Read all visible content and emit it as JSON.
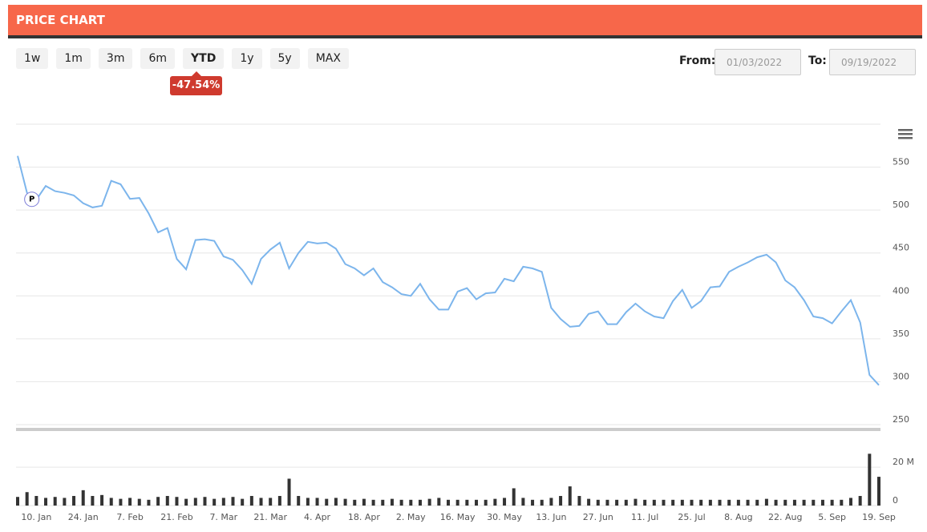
{
  "header": {
    "title": "PRICE CHART"
  },
  "controls": {
    "ranges": [
      "1w",
      "1m",
      "3m",
      "6m",
      "YTD",
      "1y",
      "5y",
      "MAX"
    ],
    "selected": "YTD",
    "change": "-47.54%",
    "from_label": "From:",
    "from": "01/03/2022",
    "to_label": "To:",
    "to": "09/19/2022"
  },
  "chart_data": {
    "type": "line",
    "categories": [
      null,
      null,
      "10. Jan",
      null,
      null,
      null,
      null,
      "24. Jan",
      null,
      null,
      null,
      null,
      "7. Feb",
      null,
      null,
      null,
      null,
      "21. Feb",
      null,
      null,
      null,
      null,
      "7. Mar",
      null,
      null,
      null,
      null,
      "21. Mar",
      null,
      null,
      null,
      null,
      "4. Apr",
      null,
      null,
      null,
      null,
      "18. Apr",
      null,
      null,
      null,
      null,
      "2. May",
      null,
      null,
      null,
      null,
      "16. May",
      null,
      null,
      null,
      null,
      "30. May",
      null,
      null,
      null,
      null,
      "13. Jun",
      null,
      null,
      null,
      null,
      "27. Jun",
      null,
      null,
      null,
      null,
      "11. Jul",
      null,
      null,
      null,
      null,
      "25. Jul",
      null,
      null,
      null,
      null,
      "8. Aug",
      null,
      null,
      null,
      null,
      "22. Aug",
      null,
      null,
      null,
      null,
      "5. Sep",
      null,
      null,
      null,
      null,
      "19. Sep"
    ],
    "series": [
      {
        "color": "#7cb5ec",
        "values": [
          563,
          520,
          512,
          528,
          522,
          520,
          517,
          508,
          503,
          505,
          534,
          530,
          513,
          514,
          496,
          474,
          479,
          443,
          431,
          465,
          466,
          464,
          446,
          442,
          430,
          414,
          443,
          454,
          462,
          432,
          450,
          463,
          461,
          462,
          455,
          437,
          432,
          424,
          432,
          416,
          410,
          402,
          400,
          414,
          396,
          384,
          384,
          405,
          409,
          396,
          403,
          404,
          420,
          417,
          434,
          432,
          428,
          386,
          373,
          364,
          365,
          379,
          382,
          367,
          367,
          381,
          391,
          382,
          376,
          374,
          394,
          407,
          386,
          394,
          410,
          411,
          428,
          434,
          439,
          445,
          448,
          439,
          418,
          410,
          395,
          376,
          374,
          368,
          382,
          395,
          369,
          308,
          296
        ]
      },
      {
        "color": "#333333",
        "axis": "y2",
        "type": "bar",
        "values": [
          4500000,
          7000000,
          5000000,
          4000000,
          4500000,
          4000000,
          5000000,
          8000000,
          5000000,
          5500000,
          4000000,
          3500000,
          4000000,
          3500000,
          3000000,
          4500000,
          5000000,
          4500000,
          3500000,
          4000000,
          4500000,
          3500000,
          4000000,
          4500000,
          3500000,
          5000000,
          4000000,
          4000000,
          5000000,
          14000000,
          5000000,
          4000000,
          4000000,
          3500000,
          4000000,
          3500000,
          3000000,
          3500000,
          3000000,
          3000000,
          3500000,
          3000000,
          3000000,
          3000000,
          3500000,
          4000000,
          3000000,
          3000000,
          3000000,
          3000000,
          3000000,
          3500000,
          4000000,
          9000000,
          4000000,
          3000000,
          3000000,
          4000000,
          5000000,
          10000000,
          5000000,
          3500000,
          3000000,
          3000000,
          3000000,
          3000000,
          3500000,
          3000000,
          3000000,
          3000000,
          3000000,
          3000000,
          3000000,
          3000000,
          3000000,
          3000000,
          3000000,
          3000000,
          3000000,
          3000000,
          3500000,
          3000000,
          3000000,
          3000000,
          3000000,
          3000000,
          3000000,
          3000000,
          3000000,
          4000000,
          5000000,
          27000000,
          15000000
        ]
      }
    ],
    "ylim": [
      250,
      600
    ],
    "yticks": [
      250,
      300,
      350,
      400,
      450,
      500,
      550
    ],
    "y2lim": [
      0,
      38000000
    ],
    "y2ticks": [
      0,
      {
        "value": 20000000,
        "label": "20 M"
      }
    ],
    "grid": true,
    "annotations": [
      {
        "text": "P",
        "index": 1
      }
    ]
  }
}
